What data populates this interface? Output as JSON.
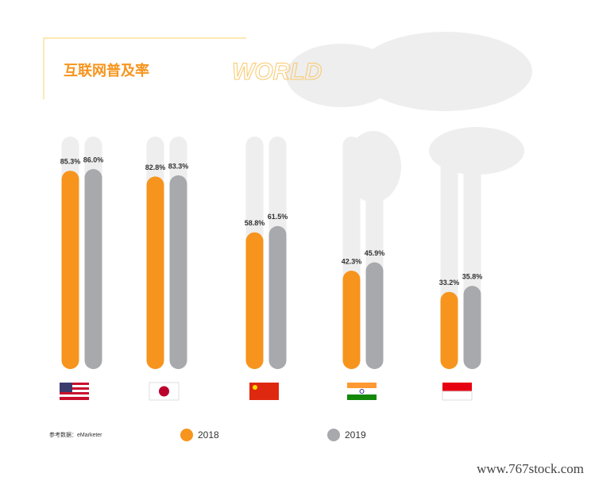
{
  "chart_data": {
    "type": "bar",
    "title": "互联网普及率",
    "subtitle": "WORLD",
    "source": "参考数据：eMarketer",
    "watermark": "www.767stock.com",
    "categories": [
      null,
      null,
      null,
      null,
      null
    ],
    "series": [
      {
        "name": "2018",
        "color": "#f7941d",
        "values": [
          85.3,
          82.8,
          58.8,
          42.3,
          33.2
        ],
        "value_labels": [
          "85.3%",
          "82.8%",
          "58.8%",
          "42.3%",
          "33.2%"
        ]
      },
      {
        "name": "2019",
        "color": "#a7a9ac",
        "values": [
          86.0,
          83.3,
          61.5,
          45.9,
          35.8
        ],
        "value_labels": [
          "86.0%",
          "83.3%",
          "61.5%",
          "45.9%",
          "35.8%"
        ]
      }
    ],
    "ylim": [
      0,
      100
    ]
  }
}
